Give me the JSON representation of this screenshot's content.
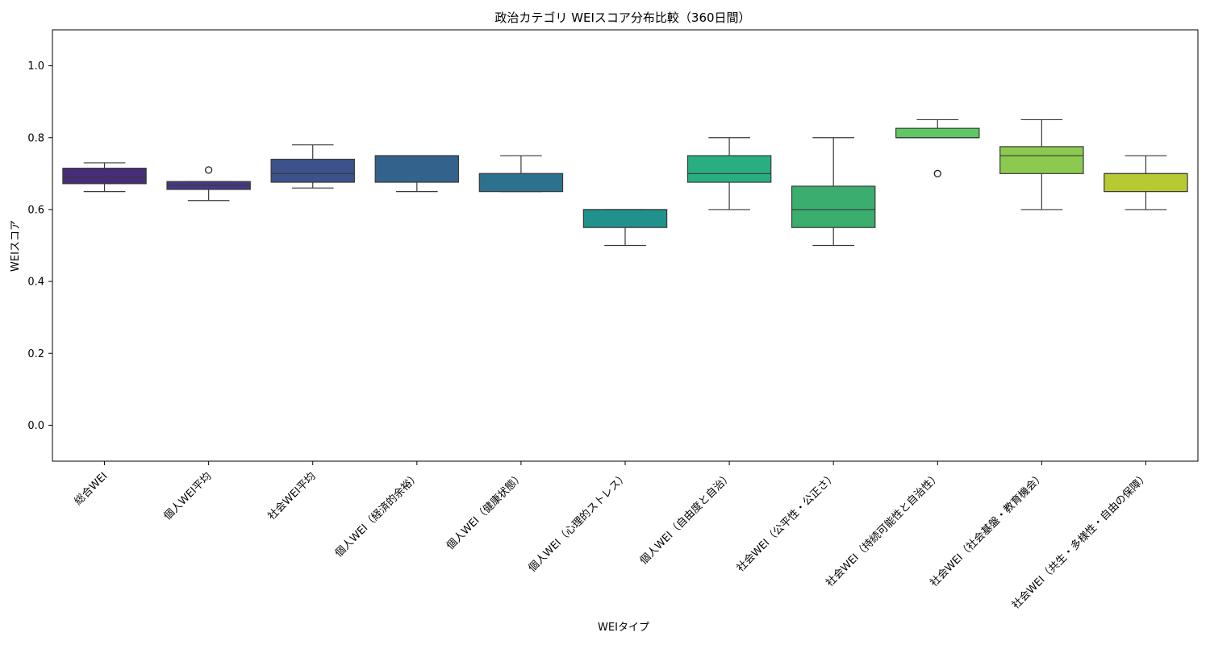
{
  "chart_data": {
    "type": "box",
    "title": "政治カテゴリ WEIスコア分布比較（360日間）",
    "xlabel": "WEIタイプ",
    "ylabel": "WEIスコア",
    "ylim": [
      -0.1,
      1.1
    ],
    "yticks": [
      "0.0",
      "0.2",
      "0.4",
      "0.6",
      "0.8",
      "1.0"
    ],
    "grid": false,
    "legend": "none",
    "categories": [
      "総合WEI",
      "個人WEI平均",
      "社会WEI平均",
      "個人WEI（経済的余裕）",
      "個人WEI（健康状態）",
      "個人WEI（心理的ストレス）",
      "個人WEI（自由度と自治）",
      "社会WEI（公平性・公正さ）",
      "社会WEI（持続可能性と自治性）",
      "社会WEI（社会基盤・教育機会）",
      "社会WEI（共生・多様性・自由の保障）"
    ],
    "boxes": [
      {
        "min": 0.65,
        "q1": 0.672,
        "median": 0.69,
        "q3": 0.715,
        "max": 0.73,
        "outliers": [],
        "color": "#472c7a"
      },
      {
        "min": 0.625,
        "q1": 0.656,
        "median": 0.668,
        "q3": 0.678,
        "max": 0.678,
        "outliers": [
          0.71
        ],
        "color": "#443a83"
      },
      {
        "min": 0.66,
        "q1": 0.676,
        "median": 0.7,
        "q3": 0.74,
        "max": 0.78,
        "outliers": [],
        "color": "#3b528b"
      },
      {
        "min": 0.65,
        "q1": 0.676,
        "median": 0.75,
        "q3": 0.75,
        "max": 0.75,
        "outliers": [],
        "color": "#33638d"
      },
      {
        "min": 0.65,
        "q1": 0.65,
        "median": 0.7,
        "q3": 0.7,
        "max": 0.75,
        "outliers": [],
        "color": "#2c728e"
      },
      {
        "min": 0.5,
        "q1": 0.55,
        "median": 0.6,
        "q3": 0.6,
        "max": 0.6,
        "outliers": [],
        "color": "#21918c"
      },
      {
        "min": 0.6,
        "q1": 0.676,
        "median": 0.7,
        "q3": 0.75,
        "max": 0.8,
        "outliers": [],
        "color": "#28ae80"
      },
      {
        "min": 0.5,
        "q1": 0.55,
        "median": 0.6,
        "q3": 0.665,
        "max": 0.8,
        "outliers": [],
        "color": "#3bad6f"
      },
      {
        "min": 0.8,
        "q1": 0.8,
        "median": 0.8,
        "q3": 0.826,
        "max": 0.85,
        "outliers": [
          0.7
        ],
        "color": "#5ec962"
      },
      {
        "min": 0.6,
        "q1": 0.7,
        "median": 0.75,
        "q3": 0.775,
        "max": 0.85,
        "outliers": [],
        "color": "#8bca4e"
      },
      {
        "min": 0.6,
        "q1": 0.65,
        "median": 0.7,
        "q3": 0.7,
        "max": 0.75,
        "outliers": [],
        "color": "#b8c932"
      }
    ]
  }
}
